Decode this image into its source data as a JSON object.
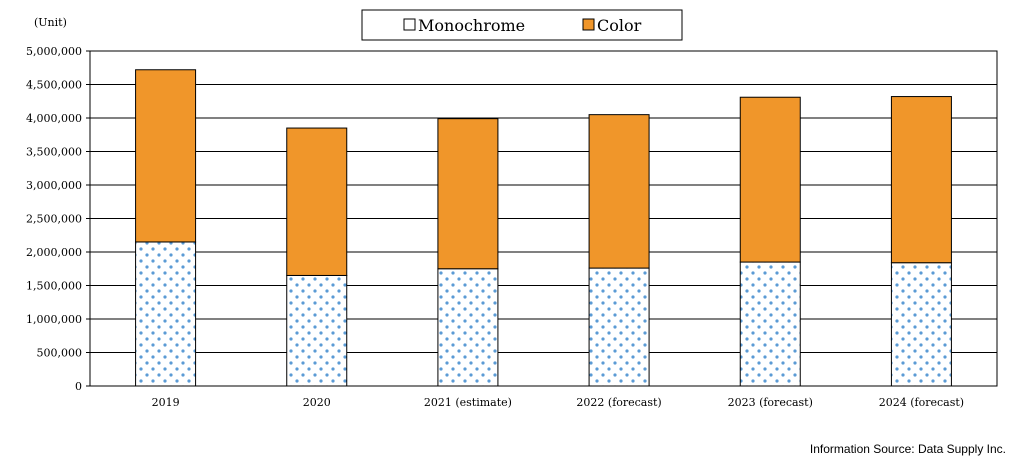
{
  "chart_data": {
    "type": "bar",
    "stacked": true,
    "unit_label": "(Unit)",
    "categories": [
      "2019",
      "2020",
      "2021 (estimate)",
      "2022 (forecast)",
      "2023 (forecast)",
      "2024 (forecast)"
    ],
    "series": [
      {
        "name": "Monochrome",
        "values": [
          2150000,
          1650000,
          1750000,
          1760000,
          1850000,
          1840000
        ],
        "color": "#ffffff",
        "pattern": "blue-dots"
      },
      {
        "name": "Color",
        "values": [
          2570000,
          2200000,
          2240000,
          2290000,
          2460000,
          2480000
        ],
        "color": "#f0962a"
      }
    ],
    "ylim": [
      0,
      5000000
    ],
    "yticks": [
      "0",
      "500,000",
      "1,000,000",
      "1,500,000",
      "2,000,000",
      "2,500,000",
      "3,000,000",
      "3,500,000",
      "4,000,000",
      "4,500,000",
      "5,000,000"
    ],
    "grid": true,
    "legend_position": "top"
  },
  "source_text": "Information Source: Data Supply Inc."
}
